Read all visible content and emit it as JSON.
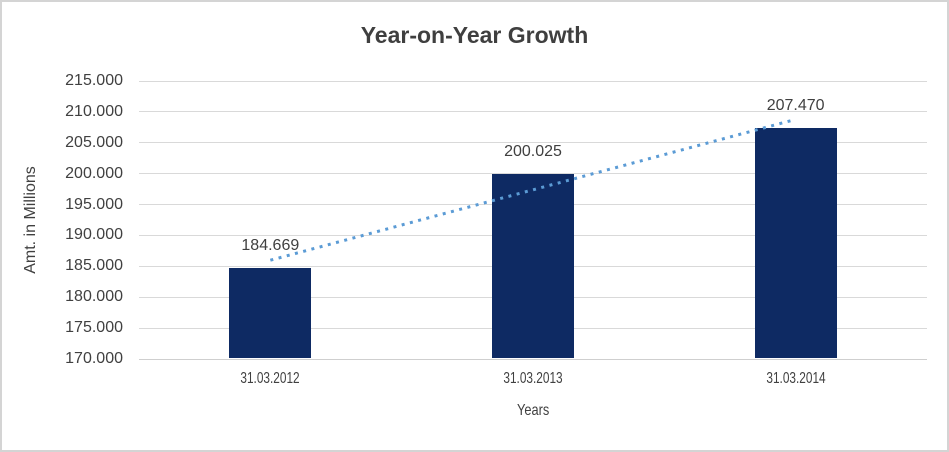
{
  "window": {
    "background_color": "#ffffff",
    "border_color": "#d4d4d4"
  },
  "chart_data": {
    "type": "bar",
    "title": "Year-on-Year Growth",
    "xlabel": "Years",
    "ylabel": "Amt. in Millions",
    "categories": [
      "31.03.2012",
      "31.03.2013",
      "31.03.2014"
    ],
    "values": [
      184.669,
      200.025,
      207.47
    ],
    "data_labels": [
      "184.669",
      "200.025",
      "207.470"
    ],
    "ylim": [
      170.0,
      215.0
    ],
    "ytick_step": 5.0,
    "ytick_labels": [
      "215.000",
      "210.000",
      "205.000",
      "200.000",
      "195.000",
      "190.000",
      "185.000",
      "180.000",
      "175.000",
      "170.000"
    ],
    "grid": true,
    "legend": false,
    "bar_color": "#0e2a63",
    "gridline_color": "#d9d9d9",
    "axis_line_color": "#cfcfcf",
    "label_color": "#404040",
    "title_color": "#3f3f3f",
    "trendline": {
      "type": "linear",
      "style": "dotted",
      "color": "#5b9bd5"
    }
  }
}
